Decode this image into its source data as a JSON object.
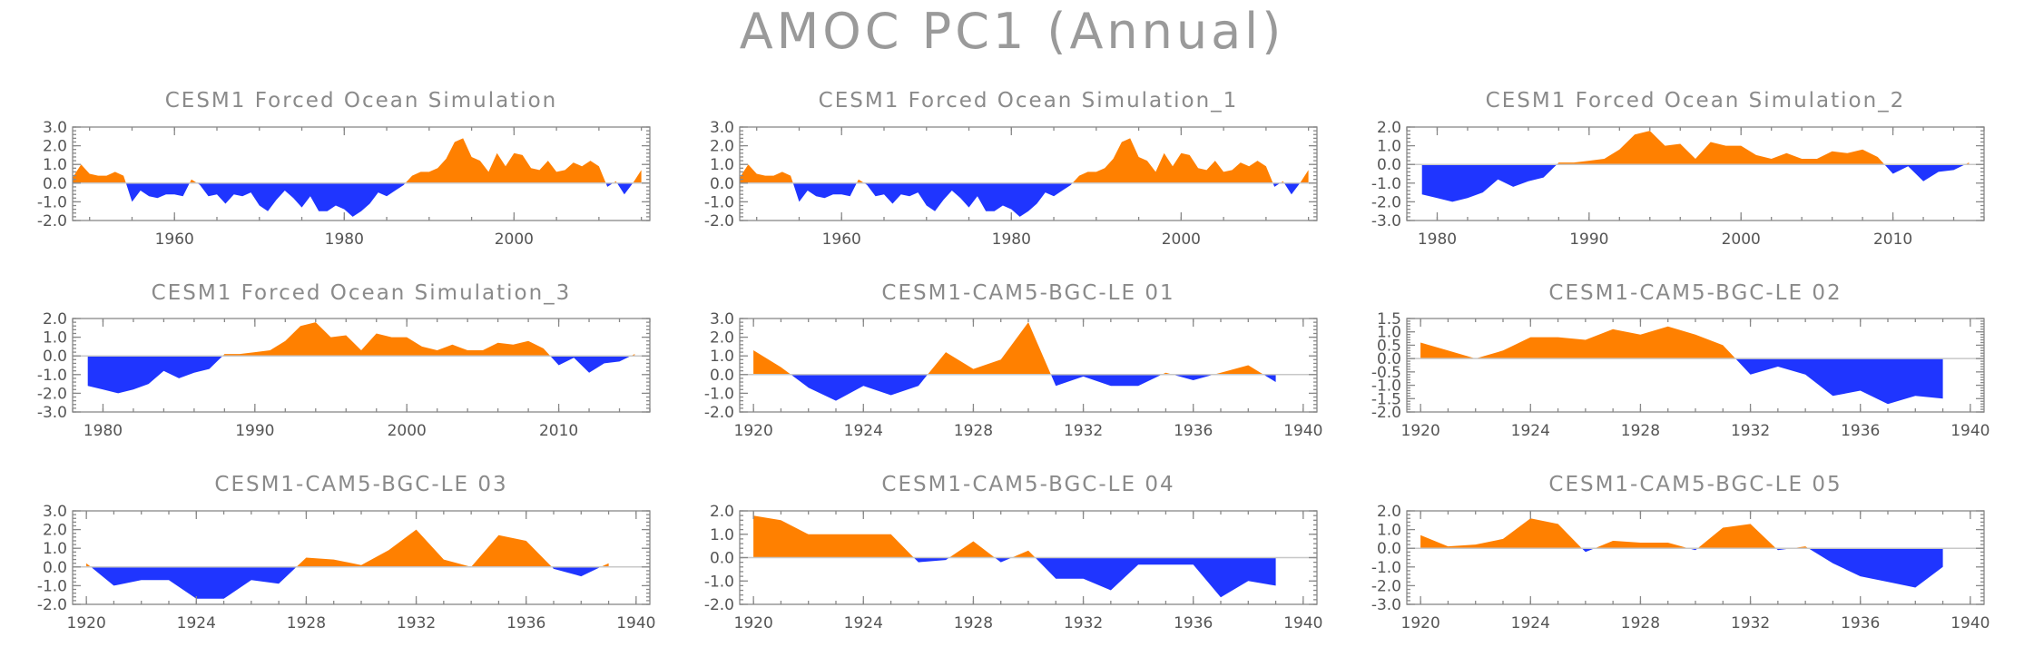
{
  "title": "AMOC PC1 (Annual)",
  "colors": {
    "positive": "#ff8000",
    "negative": "#1f35ff",
    "axis": "#888888",
    "title": "#8a8a8a"
  },
  "chart_data": [
    {
      "type": "area",
      "title": "CESM1 Forced Ocean Simulation",
      "xlim": [
        1948,
        2016
      ],
      "ylim": [
        -2.0,
        3.0
      ],
      "xticks": [
        1960,
        1980,
        2000
      ],
      "yticks": [
        "3.0",
        "2.0",
        "1.0",
        "0.0",
        "-1.0",
        "-2.0"
      ],
      "x": [
        1948,
        1949,
        1950,
        1951,
        1952,
        1953,
        1954,
        1955,
        1956,
        1957,
        1958,
        1959,
        1960,
        1961,
        1962,
        1963,
        1964,
        1965,
        1966,
        1967,
        1968,
        1969,
        1970,
        1971,
        1972,
        1973,
        1974,
        1975,
        1976,
        1977,
        1978,
        1979,
        1980,
        1981,
        1982,
        1983,
        1984,
        1985,
        1986,
        1987,
        1988,
        1989,
        1990,
        1991,
        1992,
        1993,
        1994,
        1995,
        1996,
        1997,
        1998,
        1999,
        2000,
        2001,
        2002,
        2003,
        2004,
        2005,
        2006,
        2007,
        2008,
        2009,
        2010,
        2011,
        2012,
        2013,
        2014,
        2015
      ],
      "y": [
        0.3,
        1.0,
        0.5,
        0.4,
        0.4,
        0.6,
        0.4,
        -1.0,
        -0.4,
        -0.7,
        -0.8,
        -0.6,
        -0.6,
        -0.7,
        0.2,
        -0.1,
        -0.7,
        -0.6,
        -1.1,
        -0.6,
        -0.7,
        -0.5,
        -1.2,
        -1.5,
        -0.9,
        -0.4,
        -0.8,
        -1.3,
        -0.7,
        -1.5,
        -1.5,
        -1.2,
        -1.4,
        -1.8,
        -1.5,
        -1.1,
        -0.5,
        -0.7,
        -0.4,
        -0.1,
        0.4,
        0.6,
        0.6,
        0.8,
        1.3,
        2.2,
        2.4,
        1.4,
        1.2,
        0.6,
        1.6,
        0.9,
        1.6,
        1.5,
        0.8,
        0.7,
        1.2,
        0.6,
        0.7,
        1.1,
        0.9,
        1.2,
        0.9,
        -0.2,
        0.1,
        -0.6,
        0.0,
        0.7
      ]
    },
    {
      "type": "area",
      "title": "CESM1 Forced Ocean Simulation_1",
      "xlim": [
        1948,
        2016
      ],
      "ylim": [
        -2.0,
        3.0
      ],
      "xticks": [
        1960,
        1980,
        2000
      ],
      "yticks": [
        "3.0",
        "2.0",
        "1.0",
        "0.0",
        "-1.0",
        "-2.0"
      ],
      "x": [
        1948,
        1949,
        1950,
        1951,
        1952,
        1953,
        1954,
        1955,
        1956,
        1957,
        1958,
        1959,
        1960,
        1961,
        1962,
        1963,
        1964,
        1965,
        1966,
        1967,
        1968,
        1969,
        1970,
        1971,
        1972,
        1973,
        1974,
        1975,
        1976,
        1977,
        1978,
        1979,
        1980,
        1981,
        1982,
        1983,
        1984,
        1985,
        1986,
        1987,
        1988,
        1989,
        1990,
        1991,
        1992,
        1993,
        1994,
        1995,
        1996,
        1997,
        1998,
        1999,
        2000,
        2001,
        2002,
        2003,
        2004,
        2005,
        2006,
        2007,
        2008,
        2009,
        2010,
        2011,
        2012,
        2013,
        2014,
        2015
      ],
      "y": [
        0.3,
        1.0,
        0.5,
        0.4,
        0.4,
        0.6,
        0.4,
        -1.0,
        -0.4,
        -0.7,
        -0.8,
        -0.6,
        -0.6,
        -0.7,
        0.2,
        -0.1,
        -0.7,
        -0.6,
        -1.1,
        -0.6,
        -0.7,
        -0.5,
        -1.2,
        -1.5,
        -0.9,
        -0.4,
        -0.8,
        -1.3,
        -0.7,
        -1.5,
        -1.5,
        -1.2,
        -1.4,
        -1.8,
        -1.5,
        -1.1,
        -0.5,
        -0.7,
        -0.4,
        -0.1,
        0.4,
        0.6,
        0.6,
        0.8,
        1.3,
        2.2,
        2.4,
        1.4,
        1.2,
        0.6,
        1.6,
        0.9,
        1.6,
        1.5,
        0.8,
        0.7,
        1.2,
        0.6,
        0.7,
        1.1,
        0.9,
        1.2,
        0.9,
        -0.2,
        0.1,
        -0.6,
        0.0,
        0.7
      ]
    },
    {
      "type": "area",
      "title": "CESM1 Forced Ocean Simulation_2",
      "xlim": [
        1978,
        2016
      ],
      "ylim": [
        -3.0,
        2.0
      ],
      "xticks": [
        1980,
        1990,
        2000,
        2010
      ],
      "yticks": [
        "2.0",
        "1.0",
        "0.0",
        "-1.0",
        "-2.0",
        "-3.0"
      ],
      "x": [
        1979,
        1980,
        1981,
        1982,
        1983,
        1984,
        1985,
        1986,
        1987,
        1988,
        1989,
        1990,
        1991,
        1992,
        1993,
        1994,
        1995,
        1996,
        1997,
        1998,
        1999,
        2000,
        2001,
        2002,
        2003,
        2004,
        2005,
        2006,
        2007,
        2008,
        2009,
        2010,
        2011,
        2012,
        2013,
        2014,
        2015
      ],
      "y": [
        -1.6,
        -1.8,
        -2.0,
        -1.8,
        -1.5,
        -0.8,
        -1.2,
        -0.9,
        -0.7,
        0.1,
        0.1,
        0.2,
        0.3,
        0.8,
        1.6,
        1.8,
        1.0,
        1.1,
        0.3,
        1.2,
        1.0,
        1.0,
        0.5,
        0.3,
        0.6,
        0.3,
        0.3,
        0.7,
        0.6,
        0.8,
        0.4,
        -0.5,
        -0.1,
        -0.9,
        -0.4,
        -0.3,
        0.1
      ]
    },
    {
      "type": "area",
      "title": "CESM1 Forced Ocean Simulation_3",
      "xlim": [
        1978,
        2016
      ],
      "ylim": [
        -3.0,
        2.0
      ],
      "xticks": [
        1980,
        1990,
        2000,
        2010
      ],
      "yticks": [
        "2.0",
        "1.0",
        "0.0",
        "-1.0",
        "-2.0",
        "-3.0"
      ],
      "x": [
        1979,
        1980,
        1981,
        1982,
        1983,
        1984,
        1985,
        1986,
        1987,
        1988,
        1989,
        1990,
        1991,
        1992,
        1993,
        1994,
        1995,
        1996,
        1997,
        1998,
        1999,
        2000,
        2001,
        2002,
        2003,
        2004,
        2005,
        2006,
        2007,
        2008,
        2009,
        2010,
        2011,
        2012,
        2013,
        2014,
        2015
      ],
      "y": [
        -1.6,
        -1.8,
        -2.0,
        -1.8,
        -1.5,
        -0.8,
        -1.2,
        -0.9,
        -0.7,
        0.1,
        0.1,
        0.2,
        0.3,
        0.8,
        1.6,
        1.8,
        1.0,
        1.1,
        0.3,
        1.2,
        1.0,
        1.0,
        0.5,
        0.3,
        0.6,
        0.3,
        0.3,
        0.7,
        0.6,
        0.8,
        0.4,
        -0.5,
        -0.1,
        -0.9,
        -0.4,
        -0.3,
        0.1
      ]
    },
    {
      "type": "area",
      "title": "CESM1-CAM5-BGC-LE 01",
      "xlim": [
        1919.5,
        1940.5
      ],
      "ylim": [
        -2.0,
        3.0
      ],
      "xticks": [
        1920,
        1924,
        1928,
        1932,
        1936,
        1940
      ],
      "yticks": [
        "3.0",
        "2.0",
        "1.0",
        "0.0",
        "-1.0",
        "-2.0"
      ],
      "x": [
        1920,
        1921,
        1922,
        1923,
        1924,
        1925,
        1926,
        1927,
        1928,
        1929,
        1930,
        1931,
        1932,
        1933,
        1934,
        1935,
        1936,
        1937,
        1938,
        1939
      ],
      "y": [
        1.3,
        0.4,
        -0.7,
        -1.4,
        -0.6,
        -1.1,
        -0.6,
        1.2,
        0.3,
        0.8,
        2.8,
        -0.6,
        -0.1,
        -0.6,
        -0.6,
        0.1,
        -0.3,
        0.1,
        0.5,
        -0.4
      ]
    },
    {
      "type": "area",
      "title": "CESM1-CAM5-BGC-LE 02",
      "xlim": [
        1919.5,
        1940.5
      ],
      "ylim": [
        -2.0,
        1.5
      ],
      "xticks": [
        1920,
        1924,
        1928,
        1932,
        1936,
        1940
      ],
      "yticks": [
        "1.5",
        "1.0",
        "0.5",
        "0.0",
        "-0.5",
        "-1.0",
        "-1.5",
        "-2.0"
      ],
      "x": [
        1920,
        1921,
        1922,
        1923,
        1924,
        1925,
        1926,
        1927,
        1928,
        1929,
        1930,
        1931,
        1932,
        1933,
        1934,
        1935,
        1936,
        1937,
        1938,
        1939
      ],
      "y": [
        0.6,
        0.3,
        0.0,
        0.3,
        0.8,
        0.8,
        0.7,
        1.1,
        0.9,
        1.2,
        0.9,
        0.5,
        -0.6,
        -0.3,
        -0.6,
        -1.4,
        -1.2,
        -1.7,
        -1.4,
        -1.5
      ]
    },
    {
      "type": "area",
      "title": "CESM1-CAM5-BGC-LE 03",
      "xlim": [
        1919.5,
        1940.5
      ],
      "ylim": [
        -2.0,
        3.0
      ],
      "xticks": [
        1920,
        1924,
        1928,
        1932,
        1936,
        1940
      ],
      "yticks": [
        "3.0",
        "2.0",
        "1.0",
        "0.0",
        "-1.0",
        "-2.0"
      ],
      "x": [
        1920,
        1921,
        1922,
        1923,
        1924,
        1925,
        1926,
        1927,
        1928,
        1929,
        1930,
        1931,
        1932,
        1933,
        1934,
        1935,
        1936,
        1937,
        1938,
        1939
      ],
      "y": [
        0.2,
        -1.0,
        -0.7,
        -0.7,
        -1.7,
        -1.7,
        -0.7,
        -0.9,
        0.5,
        0.4,
        0.1,
        0.9,
        2.0,
        0.4,
        0.0,
        1.7,
        1.4,
        -0.1,
        -0.5,
        0.2
      ]
    },
    {
      "type": "area",
      "title": "CESM1-CAM5-BGC-LE 04",
      "xlim": [
        1919.5,
        1940.5
      ],
      "ylim": [
        -2.0,
        2.0
      ],
      "xticks": [
        1920,
        1924,
        1928,
        1932,
        1936,
        1940
      ],
      "yticks": [
        "2.0",
        "1.0",
        "0.0",
        "-1.0",
        "-2.0"
      ],
      "x": [
        1920,
        1921,
        1922,
        1923,
        1924,
        1925,
        1926,
        1927,
        1928,
        1929,
        1930,
        1931,
        1932,
        1933,
        1934,
        1935,
        1936,
        1937,
        1938,
        1939
      ],
      "y": [
        1.8,
        1.6,
        1.0,
        1.0,
        1.0,
        1.0,
        -0.2,
        -0.1,
        0.7,
        -0.2,
        0.3,
        -0.9,
        -0.9,
        -1.4,
        -0.3,
        -0.3,
        -0.3,
        -1.7,
        -1.0,
        -1.2
      ]
    },
    {
      "type": "area",
      "title": "CESM1-CAM5-BGC-LE 05",
      "xlim": [
        1919.5,
        1940.5
      ],
      "ylim": [
        -3.0,
        2.0
      ],
      "xticks": [
        1920,
        1924,
        1928,
        1932,
        1936,
        1940
      ],
      "yticks": [
        "2.0",
        "1.0",
        "0.0",
        "-1.0",
        "-2.0",
        "-3.0"
      ],
      "x": [
        1920,
        1921,
        1922,
        1923,
        1924,
        1925,
        1926,
        1927,
        1928,
        1929,
        1930,
        1931,
        1932,
        1933,
        1934,
        1935,
        1936,
        1937,
        1938,
        1939
      ],
      "y": [
        0.7,
        0.1,
        0.2,
        0.5,
        1.6,
        1.3,
        -0.2,
        0.4,
        0.3,
        0.3,
        -0.1,
        1.1,
        1.3,
        -0.1,
        0.1,
        -0.8,
        -1.5,
        -1.8,
        -2.1,
        -1.0
      ]
    }
  ]
}
